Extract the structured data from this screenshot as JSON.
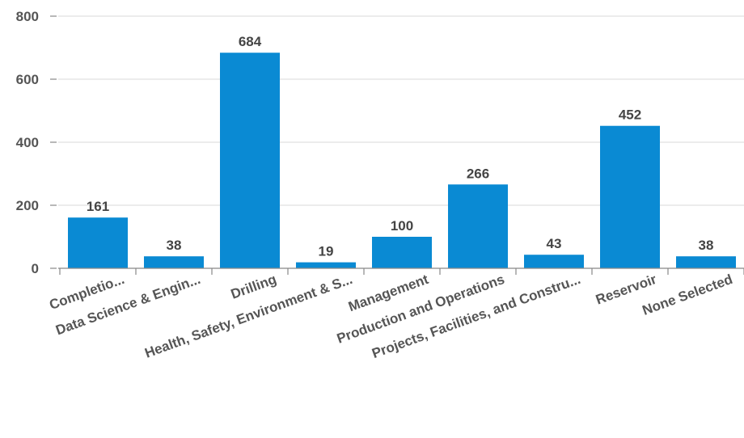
{
  "chart_data": {
    "type": "bar",
    "categories": [
      "Completio...",
      "Data Science & Engin...",
      "Drilling",
      "Health, Safety, Environment & S...",
      "Management",
      "Production and Operations",
      "Projects, Facilities, and Constru...",
      "Reservoir",
      "None Selected"
    ],
    "values": [
      161,
      38,
      684,
      19,
      100,
      266,
      43,
      452,
      38
    ],
    "data_labels": [
      "161",
      "38",
      "684",
      "19",
      "100",
      "266",
      "43",
      "452",
      "38"
    ],
    "yticks": [
      0,
      200,
      400,
      600,
      800
    ],
    "ytick_labels": [
      "0",
      "200",
      "400",
      "600",
      "800"
    ],
    "ylim": [
      0,
      800
    ],
    "grid": true,
    "bar_color": "#0a8ad3",
    "grid_color": "#d9d9d9",
    "text_color": "#555555"
  }
}
